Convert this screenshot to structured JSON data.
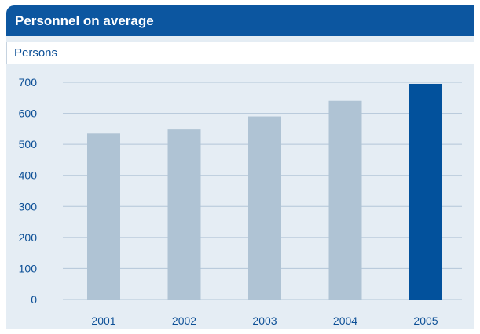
{
  "header": {
    "title": "Personnel on average",
    "unit": "Persons"
  },
  "colors": {
    "header_bg": "#0c56a0",
    "panel_bg": "#e5edf4",
    "bar_default": "#afc3d4",
    "bar_highlight": "#02519c",
    "axis_text": "#0c4f96",
    "grid": "#b3c6d8"
  },
  "chart_data": {
    "type": "bar",
    "title": "Personnel on average",
    "ylabel": "Persons",
    "xlabel": "",
    "categories": [
      "2001",
      "2002",
      "2003",
      "2004",
      "2005"
    ],
    "values": [
      535,
      548,
      590,
      640,
      695
    ],
    "highlight_index": 4,
    "ylim": [
      0,
      700
    ],
    "yticks": [
      0,
      100,
      200,
      300,
      400,
      500,
      600,
      700
    ],
    "grid": true,
    "legend": "none"
  }
}
